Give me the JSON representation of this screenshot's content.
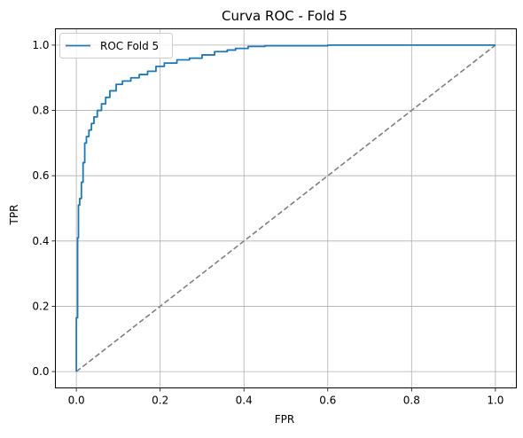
{
  "chart_data": {
    "type": "line",
    "title": "Curva ROC - Fold 5",
    "xlabel": "FPR",
    "ylabel": "TPR",
    "xlim": [
      -0.05,
      1.05
    ],
    "ylim": [
      -0.05,
      1.05
    ],
    "xticks": [
      0.0,
      0.2,
      0.4,
      0.6,
      0.8,
      1.0
    ],
    "yticks": [
      0.0,
      0.2,
      0.4,
      0.6,
      0.8,
      1.0
    ],
    "xtick_labels": [
      "0.0",
      "0.2",
      "0.4",
      "0.6",
      "0.8",
      "1.0"
    ],
    "ytick_labels": [
      "0.0",
      "0.2",
      "0.4",
      "0.6",
      "0.8",
      "1.0"
    ],
    "grid": true,
    "legend_position": "top-left",
    "series": [
      {
        "name": "ROC Fold 5",
        "color": "#1f77b4",
        "style": "solid",
        "x": [
          0.0,
          0.0,
          0.003,
          0.003,
          0.005,
          0.005,
          0.008,
          0.008,
          0.012,
          0.012,
          0.016,
          0.016,
          0.02,
          0.02,
          0.024,
          0.024,
          0.03,
          0.03,
          0.036,
          0.036,
          0.042,
          0.042,
          0.05,
          0.05,
          0.06,
          0.06,
          0.07,
          0.07,
          0.08,
          0.08,
          0.095,
          0.095,
          0.11,
          0.11,
          0.13,
          0.13,
          0.15,
          0.15,
          0.17,
          0.17,
          0.19,
          0.19,
          0.21,
          0.21,
          0.24,
          0.24,
          0.27,
          0.27,
          0.3,
          0.3,
          0.33,
          0.33,
          0.36,
          0.36,
          0.38,
          0.38,
          0.41,
          0.41,
          0.45,
          0.45,
          0.6,
          0.6,
          1.0
        ],
        "y": [
          0.0,
          0.165,
          0.165,
          0.41,
          0.41,
          0.51,
          0.51,
          0.53,
          0.53,
          0.58,
          0.58,
          0.64,
          0.64,
          0.7,
          0.7,
          0.72,
          0.72,
          0.74,
          0.74,
          0.76,
          0.76,
          0.78,
          0.78,
          0.8,
          0.8,
          0.82,
          0.82,
          0.84,
          0.84,
          0.86,
          0.86,
          0.88,
          0.88,
          0.89,
          0.89,
          0.9,
          0.9,
          0.91,
          0.91,
          0.92,
          0.92,
          0.935,
          0.935,
          0.945,
          0.945,
          0.955,
          0.955,
          0.96,
          0.96,
          0.97,
          0.97,
          0.98,
          0.98,
          0.985,
          0.985,
          0.99,
          0.99,
          0.996,
          0.996,
          0.998,
          0.998,
          1.0,
          1.0
        ]
      },
      {
        "color": "#808080",
        "style": "dashed",
        "x": [
          0.0,
          1.0
        ],
        "y": [
          0.0,
          1.0
        ]
      }
    ]
  }
}
